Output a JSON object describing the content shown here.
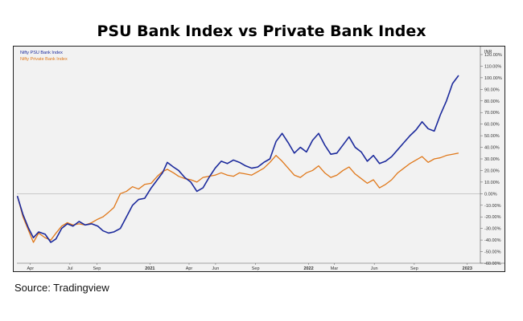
{
  "title": "PSU Bank Index vs Private Bank Index",
  "source": "Source: Tradingview",
  "colors": {
    "psu": "#1c2a9c",
    "private": "#e0781a",
    "plot_bg": "#f2f2f2",
    "zero_line": "#b0b0b0"
  },
  "chart_data": {
    "type": "line",
    "title": "PSU Bank Index vs Private Bank Index",
    "ylabel": "INR",
    "y_unit": "%",
    "ylim": [
      -60,
      120
    ],
    "y_ticks": [
      120,
      110,
      100,
      90,
      80,
      70,
      60,
      50,
      40,
      30,
      20,
      10,
      0,
      -10,
      -20,
      -30,
      -40,
      -50,
      -60
    ],
    "y_tick_labels": [
      "120.00%",
      "110.00%",
      "100.00%",
      "90.00%",
      "80.00%",
      "70.00%",
      "60.00%",
      "50.00%",
      "40.00%",
      "30.00%",
      "20.00%",
      "10.00%",
      "0.00%",
      "-10.00%",
      "-20.00%",
      "-30.00%",
      "-40.00%",
      "-50.00%",
      "-60.00%"
    ],
    "x_range": [
      "2020-03-01",
      "2023-01-31"
    ],
    "x_ticks": [
      {
        "date": "2020-04-01",
        "label": "Apr",
        "bold": false
      },
      {
        "date": "2020-07-01",
        "label": "Jul",
        "bold": false
      },
      {
        "date": "2020-09-01",
        "label": "Sep",
        "bold": false
      },
      {
        "date": "2021-01-01",
        "label": "2021",
        "bold": true
      },
      {
        "date": "2021-04-01",
        "label": "Apr",
        "bold": false
      },
      {
        "date": "2021-06-01",
        "label": "Jun",
        "bold": false
      },
      {
        "date": "2021-09-01",
        "label": "Sep",
        "bold": false
      },
      {
        "date": "2022-01-01",
        "label": "2022",
        "bold": true
      },
      {
        "date": "2022-03-01",
        "label": "Mar",
        "bold": false
      },
      {
        "date": "2022-06-01",
        "label": "Jun",
        "bold": false
      },
      {
        "date": "2022-09-01",
        "label": "Sep",
        "bold": false
      },
      {
        "date": "2023-01-01",
        "label": "2023",
        "bold": true
      }
    ],
    "legend_position": "top-left",
    "grid": false,
    "series": [
      {
        "name": "Nifty PSU Bank Index",
        "color": "#1c2a9c",
        "points": [
          [
            "2020-03-02",
            -2
          ],
          [
            "2020-03-15",
            -18
          ],
          [
            "2020-03-28",
            -30
          ],
          [
            "2020-04-08",
            -38
          ],
          [
            "2020-04-20",
            -33
          ],
          [
            "2020-05-05",
            -35
          ],
          [
            "2020-05-18",
            -42
          ],
          [
            "2020-05-30",
            -39
          ],
          [
            "2020-06-12",
            -30
          ],
          [
            "2020-06-25",
            -26
          ],
          [
            "2020-07-08",
            -28
          ],
          [
            "2020-07-22",
            -24
          ],
          [
            "2020-08-05",
            -27
          ],
          [
            "2020-08-20",
            -26
          ],
          [
            "2020-09-03",
            -28
          ],
          [
            "2020-09-15",
            -32
          ],
          [
            "2020-09-28",
            -34
          ],
          [
            "2020-10-10",
            -33
          ],
          [
            "2020-10-25",
            -30
          ],
          [
            "2020-11-08",
            -20
          ],
          [
            "2020-11-22",
            -10
          ],
          [
            "2020-12-06",
            -5
          ],
          [
            "2020-12-20",
            -4
          ],
          [
            "2021-01-04",
            5
          ],
          [
            "2021-01-18",
            12
          ],
          [
            "2021-01-30",
            18
          ],
          [
            "2021-02-10",
            27
          ],
          [
            "2021-02-24",
            23
          ],
          [
            "2021-03-08",
            20
          ],
          [
            "2021-03-22",
            14
          ],
          [
            "2021-04-05",
            10
          ],
          [
            "2021-04-19",
            2
          ],
          [
            "2021-05-03",
            5
          ],
          [
            "2021-05-17",
            14
          ],
          [
            "2021-05-31",
            22
          ],
          [
            "2021-06-14",
            28
          ],
          [
            "2021-06-28",
            26
          ],
          [
            "2021-07-12",
            29
          ],
          [
            "2021-07-26",
            27
          ],
          [
            "2021-08-09",
            24
          ],
          [
            "2021-08-23",
            22
          ],
          [
            "2021-09-06",
            23
          ],
          [
            "2021-09-20",
            27
          ],
          [
            "2021-10-04",
            30
          ],
          [
            "2021-10-18",
            45
          ],
          [
            "2021-11-01",
            52
          ],
          [
            "2021-11-15",
            44
          ],
          [
            "2021-11-29",
            35
          ],
          [
            "2021-12-13",
            40
          ],
          [
            "2021-12-27",
            36
          ],
          [
            "2022-01-10",
            46
          ],
          [
            "2022-01-24",
            52
          ],
          [
            "2022-02-07",
            42
          ],
          [
            "2022-02-21",
            34
          ],
          [
            "2022-03-07",
            35
          ],
          [
            "2022-03-21",
            42
          ],
          [
            "2022-04-04",
            49
          ],
          [
            "2022-04-18",
            40
          ],
          [
            "2022-05-02",
            36
          ],
          [
            "2022-05-16",
            28
          ],
          [
            "2022-05-30",
            33
          ],
          [
            "2022-06-13",
            26
          ],
          [
            "2022-06-27",
            28
          ],
          [
            "2022-07-11",
            32
          ],
          [
            "2022-07-25",
            38
          ],
          [
            "2022-08-08",
            44
          ],
          [
            "2022-08-22",
            50
          ],
          [
            "2022-09-05",
            55
          ],
          [
            "2022-09-19",
            62
          ],
          [
            "2022-10-03",
            56
          ],
          [
            "2022-10-17",
            54
          ],
          [
            "2022-10-31",
            68
          ],
          [
            "2022-11-14",
            80
          ],
          [
            "2022-11-28",
            95
          ],
          [
            "2022-12-12",
            102
          ]
        ]
      },
      {
        "name": "Nifty Private Bank Index",
        "color": "#e0781a",
        "points": [
          [
            "2020-03-02",
            -2
          ],
          [
            "2020-03-15",
            -20
          ],
          [
            "2020-03-28",
            -32
          ],
          [
            "2020-04-08",
            -42
          ],
          [
            "2020-04-20",
            -34
          ],
          [
            "2020-05-05",
            -38
          ],
          [
            "2020-05-18",
            -40
          ],
          [
            "2020-05-30",
            -34
          ],
          [
            "2020-06-12",
            -28
          ],
          [
            "2020-06-25",
            -25
          ],
          [
            "2020-07-08",
            -27
          ],
          [
            "2020-07-22",
            -26
          ],
          [
            "2020-08-05",
            -27
          ],
          [
            "2020-08-20",
            -25
          ],
          [
            "2020-09-03",
            -22
          ],
          [
            "2020-09-15",
            -20
          ],
          [
            "2020-09-28",
            -16
          ],
          [
            "2020-10-10",
            -12
          ],
          [
            "2020-10-25",
            0
          ],
          [
            "2020-11-08",
            2
          ],
          [
            "2020-11-22",
            6
          ],
          [
            "2020-12-06",
            4
          ],
          [
            "2020-12-20",
            8
          ],
          [
            "2021-01-04",
            9
          ],
          [
            "2021-01-18",
            15
          ],
          [
            "2021-01-30",
            19
          ],
          [
            "2021-02-10",
            21
          ],
          [
            "2021-02-24",
            18
          ],
          [
            "2021-03-08",
            15
          ],
          [
            "2021-03-22",
            13
          ],
          [
            "2021-04-05",
            12
          ],
          [
            "2021-04-19",
            10
          ],
          [
            "2021-05-03",
            14
          ],
          [
            "2021-05-17",
            15
          ],
          [
            "2021-05-31",
            16
          ],
          [
            "2021-06-14",
            18
          ],
          [
            "2021-06-28",
            16
          ],
          [
            "2021-07-12",
            15
          ],
          [
            "2021-07-26",
            18
          ],
          [
            "2021-08-09",
            17
          ],
          [
            "2021-08-23",
            16
          ],
          [
            "2021-09-06",
            19
          ],
          [
            "2021-09-20",
            22
          ],
          [
            "2021-10-04",
            27
          ],
          [
            "2021-10-18",
            33
          ],
          [
            "2021-11-01",
            28
          ],
          [
            "2021-11-15",
            22
          ],
          [
            "2021-11-29",
            16
          ],
          [
            "2021-12-13",
            14
          ],
          [
            "2021-12-27",
            18
          ],
          [
            "2022-01-10",
            20
          ],
          [
            "2022-01-24",
            24
          ],
          [
            "2022-02-07",
            18
          ],
          [
            "2022-02-21",
            14
          ],
          [
            "2022-03-07",
            16
          ],
          [
            "2022-03-21",
            20
          ],
          [
            "2022-04-04",
            23
          ],
          [
            "2022-04-18",
            17
          ],
          [
            "2022-05-02",
            13
          ],
          [
            "2022-05-16",
            9
          ],
          [
            "2022-05-30",
            12
          ],
          [
            "2022-06-13",
            5
          ],
          [
            "2022-06-27",
            8
          ],
          [
            "2022-07-11",
            12
          ],
          [
            "2022-07-25",
            18
          ],
          [
            "2022-08-08",
            22
          ],
          [
            "2022-08-22",
            26
          ],
          [
            "2022-09-05",
            29
          ],
          [
            "2022-09-19",
            32
          ],
          [
            "2022-10-03",
            27
          ],
          [
            "2022-10-17",
            30
          ],
          [
            "2022-10-31",
            31
          ],
          [
            "2022-11-14",
            33
          ],
          [
            "2022-11-28",
            34
          ],
          [
            "2022-12-12",
            35
          ]
        ]
      }
    ]
  }
}
